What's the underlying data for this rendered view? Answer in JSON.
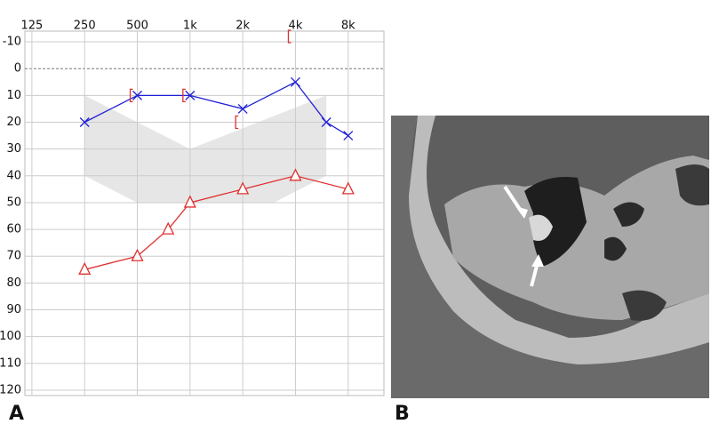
{
  "chart_data": {
    "type": "line",
    "xscale": "log",
    "y_reversed": true,
    "xlim": [
      114,
      12800
    ],
    "ylim": [
      -14,
      122
    ],
    "xticks": [
      125,
      250,
      500,
      {
        "value": 1000,
        "label": "1k"
      },
      {
        "value": 2000,
        "label": "2k"
      },
      {
        "value": 4000,
        "label": "4k"
      },
      {
        "value": 8000,
        "label": "8k"
      }
    ],
    "yticks": [
      -10,
      0,
      10,
      20,
      30,
      40,
      50,
      60,
      70,
      80,
      90,
      100,
      110,
      120
    ],
    "grid": true,
    "shade": {
      "color": "#e6e6e6",
      "x": [
        250,
        1000,
        6000,
        6000,
        3000,
        500,
        250
      ],
      "y": [
        10,
        30,
        10,
        40,
        50,
        50,
        40
      ]
    },
    "series": [
      {
        "color": "#1f1fd6",
        "marker": "x",
        "line": true,
        "x": [
          250,
          500,
          1000,
          2000,
          4000,
          6000,
          8000
        ],
        "values": [
          20,
          10,
          10,
          15,
          5,
          20,
          25
        ]
      },
      {
        "color": "#e03030",
        "marker": "triangle",
        "line": true,
        "x": [
          250,
          500,
          750,
          1000,
          2000,
          4000,
          8000
        ],
        "values": [
          75,
          70,
          60,
          50,
          45,
          40,
          45
        ]
      },
      {
        "color": "#e03030",
        "marker": "bracket",
        "line": false,
        "x": [
          500,
          1000,
          2000,
          4000
        ],
        "values": [
          10,
          10,
          20,
          -12
        ]
      }
    ]
  },
  "panel_labels": [
    "A",
    "B"
  ]
}
